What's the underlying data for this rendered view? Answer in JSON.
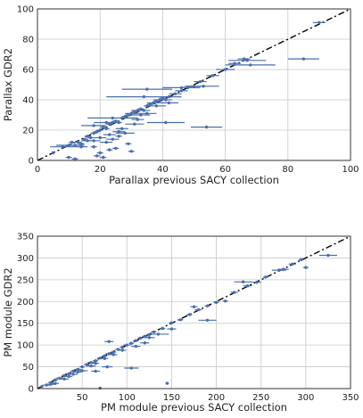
{
  "chart_data": [
    {
      "type": "scatter",
      "title": "",
      "xlabel": "Parallax previous SACY collection",
      "ylabel": "Parallax GDR2",
      "xlim": [
        0,
        100
      ],
      "ylim": [
        0,
        100
      ],
      "xticks": [
        0,
        20,
        40,
        60,
        80,
        100
      ],
      "yticks": [
        0,
        20,
        40,
        60,
        80,
        100
      ],
      "grid": true,
      "reference_line": {
        "style": "dash-dot",
        "color": "#000000",
        "x": [
          0,
          100
        ],
        "y": [
          0,
          100
        ]
      },
      "marker_color": "#4a6fb0",
      "points": [
        {
          "x": 5,
          "y": 5,
          "xerr": 0.5
        },
        {
          "x": 8,
          "y": 9,
          "xerr": 4
        },
        {
          "x": 10,
          "y": 10,
          "xerr": 4
        },
        {
          "x": 11,
          "y": 12,
          "xerr": 1
        },
        {
          "x": 12,
          "y": 10,
          "xerr": 3
        },
        {
          "x": 13,
          "y": 12,
          "xerr": 1
        },
        {
          "x": 14,
          "y": 11,
          "xerr": 1
        },
        {
          "x": 15,
          "y": 14,
          "xerr": 1
        },
        {
          "x": 16,
          "y": 16,
          "xerr": 1
        },
        {
          "x": 17,
          "y": 15,
          "xerr": 1
        },
        {
          "x": 18,
          "y": 18,
          "xerr": 1
        },
        {
          "x": 19,
          "y": 19,
          "xerr": 1
        },
        {
          "x": 20,
          "y": 20,
          "xerr": 1
        },
        {
          "x": 21,
          "y": 22,
          "xerr": 1
        },
        {
          "x": 22,
          "y": 21,
          "xerr": 1
        },
        {
          "x": 23,
          "y": 24,
          "xerr": 1
        },
        {
          "x": 24,
          "y": 25,
          "xerr": 1
        },
        {
          "x": 25,
          "y": 26,
          "xerr": 1
        },
        {
          "x": 26,
          "y": 25,
          "xerr": 1
        },
        {
          "x": 27,
          "y": 28,
          "xerr": 1
        },
        {
          "x": 28,
          "y": 29,
          "xerr": 1
        },
        {
          "x": 29,
          "y": 30,
          "xerr": 1
        },
        {
          "x": 30,
          "y": 31,
          "xerr": 2
        },
        {
          "x": 31,
          "y": 32,
          "xerr": 1
        },
        {
          "x": 32,
          "y": 33,
          "xerr": 2
        },
        {
          "x": 33,
          "y": 34,
          "xerr": 1
        },
        {
          "x": 34,
          "y": 33,
          "xerr": 2
        },
        {
          "x": 35,
          "y": 36,
          "xerr": 1
        },
        {
          "x": 36,
          "y": 37,
          "xerr": 1
        },
        {
          "x": 37,
          "y": 38,
          "xerr": 2
        },
        {
          "x": 38,
          "y": 39,
          "xerr": 1
        },
        {
          "x": 39,
          "y": 40,
          "xerr": 2
        },
        {
          "x": 40,
          "y": 41,
          "xerr": 1
        },
        {
          "x": 41,
          "y": 40,
          "xerr": 2
        },
        {
          "x": 42,
          "y": 42,
          "xerr": 1
        },
        {
          "x": 44,
          "y": 44,
          "xerr": 2
        },
        {
          "x": 46,
          "y": 46,
          "xerr": 2
        },
        {
          "x": 48,
          "y": 48,
          "xerr": 2
        },
        {
          "x": 50,
          "y": 49,
          "xerr": 3
        },
        {
          "x": 52,
          "y": 52,
          "xerr": 2
        },
        {
          "x": 56,
          "y": 56,
          "xerr": 2
        },
        {
          "x": 60,
          "y": 60,
          "xerr": 3
        },
        {
          "x": 63,
          "y": 64,
          "xerr": 2
        },
        {
          "x": 66,
          "y": 67,
          "xerr": 2
        },
        {
          "x": 90,
          "y": 91,
          "xerr": 2
        },
        {
          "x": 14,
          "y": 9,
          "xerr": 2
        },
        {
          "x": 16,
          "y": 13,
          "xerr": 2
        },
        {
          "x": 18,
          "y": 13,
          "xerr": 2
        },
        {
          "x": 20,
          "y": 15,
          "xerr": 2
        },
        {
          "x": 20,
          "y": 5,
          "xerr": 1
        },
        {
          "x": 21,
          "y": 2,
          "xerr": 1
        },
        {
          "x": 22,
          "y": 12,
          "xerr": 2
        },
        {
          "x": 23,
          "y": 17,
          "xerr": 2
        },
        {
          "x": 24,
          "y": 14,
          "xerr": 2
        },
        {
          "x": 25,
          "y": 8,
          "xerr": 1
        },
        {
          "x": 26,
          "y": 19,
          "xerr": 2
        },
        {
          "x": 27,
          "y": 21,
          "xerr": 2
        },
        {
          "x": 28,
          "y": 18,
          "xerr": 3
        },
        {
          "x": 29,
          "y": 11,
          "xerr": 1
        },
        {
          "x": 30,
          "y": 6,
          "xerr": 1
        },
        {
          "x": 31,
          "y": 24,
          "xerr": 3
        },
        {
          "x": 32,
          "y": 27,
          "xerr": 2
        },
        {
          "x": 33,
          "y": 30,
          "xerr": 3
        },
        {
          "x": 35,
          "y": 31,
          "xerr": 3
        },
        {
          "x": 38,
          "y": 36,
          "xerr": 3
        },
        {
          "x": 42,
          "y": 38,
          "xerr": 3
        },
        {
          "x": 10,
          "y": 2,
          "xerr": 1
        },
        {
          "x": 12,
          "y": 1,
          "xerr": 1
        },
        {
          "x": 18,
          "y": 9,
          "xerr": 1
        },
        {
          "x": 19,
          "y": 3,
          "xerr": 1
        },
        {
          "x": 23,
          "y": 7,
          "xerr": 1
        },
        {
          "x": 26,
          "y": 16,
          "xerr": 1
        },
        {
          "x": 24,
          "y": 28,
          "xerr": 8
        },
        {
          "x": 34,
          "y": 42,
          "xerr": 12
        },
        {
          "x": 35,
          "y": 47,
          "xerr": 8
        },
        {
          "x": 41,
          "y": 25,
          "xerr": 6
        },
        {
          "x": 46,
          "y": 48,
          "xerr": 6
        },
        {
          "x": 53,
          "y": 49,
          "xerr": 5
        },
        {
          "x": 54,
          "y": 22,
          "xerr": 5
        },
        {
          "x": 68,
          "y": 63,
          "xerr": 8
        },
        {
          "x": 67,
          "y": 66,
          "xerr": 6
        },
        {
          "x": 85,
          "y": 67,
          "xerr": 5
        },
        {
          "x": 18,
          "y": 23,
          "xerr": 4
        },
        {
          "x": 22,
          "y": 25,
          "xerr": 4
        }
      ]
    },
    {
      "type": "scatter",
      "title": "",
      "xlabel": "PM module previous SACY collection",
      "ylabel": "PM module GDR2",
      "xlim": [
        0,
        350
      ],
      "ylim": [
        0,
        350
      ],
      "xticks": [
        50,
        100,
        150,
        200,
        250,
        300,
        350
      ],
      "yticks": [
        0,
        50,
        100,
        150,
        200,
        250,
        300,
        350
      ],
      "grid": true,
      "reference_line": {
        "style": "dash-dot",
        "color": "#000000",
        "x": [
          0,
          350
        ],
        "y": [
          0,
          350
        ]
      },
      "marker_color": "#4a6fb0",
      "points": [
        {
          "x": 5,
          "y": 5,
          "xerr": 1
        },
        {
          "x": 10,
          "y": 8,
          "xerr": 4
        },
        {
          "x": 15,
          "y": 14,
          "xerr": 3
        },
        {
          "x": 20,
          "y": 20,
          "xerr": 3
        },
        {
          "x": 25,
          "y": 24,
          "xerr": 4
        },
        {
          "x": 30,
          "y": 30,
          "xerr": 3
        },
        {
          "x": 35,
          "y": 34,
          "xerr": 4
        },
        {
          "x": 40,
          "y": 40,
          "xerr": 3
        },
        {
          "x": 45,
          "y": 44,
          "xerr": 4
        },
        {
          "x": 50,
          "y": 50,
          "xerr": 3
        },
        {
          "x": 55,
          "y": 55,
          "xerr": 3
        },
        {
          "x": 60,
          "y": 60,
          "xerr": 4
        },
        {
          "x": 65,
          "y": 64,
          "xerr": 3
        },
        {
          "x": 70,
          "y": 70,
          "xerr": 3
        },
        {
          "x": 75,
          "y": 75,
          "xerr": 3
        },
        {
          "x": 80,
          "y": 80,
          "xerr": 4
        },
        {
          "x": 85,
          "y": 84,
          "xerr": 3
        },
        {
          "x": 90,
          "y": 90,
          "xerr": 3
        },
        {
          "x": 95,
          "y": 95,
          "xerr": 3
        },
        {
          "x": 100,
          "y": 100,
          "xerr": 4
        },
        {
          "x": 105,
          "y": 104,
          "xerr": 3
        },
        {
          "x": 110,
          "y": 110,
          "xerr": 3
        },
        {
          "x": 115,
          "y": 116,
          "xerr": 3
        },
        {
          "x": 120,
          "y": 120,
          "xerr": 3
        },
        {
          "x": 125,
          "y": 124,
          "xerr": 3
        },
        {
          "x": 130,
          "y": 130,
          "xerr": 3
        },
        {
          "x": 140,
          "y": 138,
          "xerr": 3
        },
        {
          "x": 150,
          "y": 151,
          "xerr": 3
        },
        {
          "x": 160,
          "y": 158,
          "xerr": 3
        },
        {
          "x": 170,
          "y": 170,
          "xerr": 3
        },
        {
          "x": 180,
          "y": 181,
          "xerr": 4
        },
        {
          "x": 190,
          "y": 190,
          "xerr": 3
        },
        {
          "x": 200,
          "y": 198,
          "xerr": 3
        },
        {
          "x": 220,
          "y": 221,
          "xerr": 4
        },
        {
          "x": 235,
          "y": 236,
          "xerr": 5
        },
        {
          "x": 245,
          "y": 244,
          "xerr": 5
        },
        {
          "x": 255,
          "y": 256,
          "xerr": 3
        },
        {
          "x": 275,
          "y": 274,
          "xerr": 6
        },
        {
          "x": 285,
          "y": 286,
          "xerr": 4
        },
        {
          "x": 295,
          "y": 296,
          "xerr": 3
        },
        {
          "x": 30,
          "y": 22,
          "xerr": 5
        },
        {
          "x": 40,
          "y": 33,
          "xerr": 5
        },
        {
          "x": 50,
          "y": 41,
          "xerr": 6
        },
        {
          "x": 60,
          "y": 52,
          "xerr": 5
        },
        {
          "x": 20,
          "y": 12,
          "xerr": 4
        },
        {
          "x": 15,
          "y": 10,
          "xerr": 6
        },
        {
          "x": 35,
          "y": 28,
          "xerr": 4
        },
        {
          "x": 45,
          "y": 38,
          "xerr": 4
        },
        {
          "x": 65,
          "y": 58,
          "xerr": 4
        },
        {
          "x": 75,
          "y": 69,
          "xerr": 4
        },
        {
          "x": 85,
          "y": 78,
          "xerr": 4
        },
        {
          "x": 95,
          "y": 88,
          "xerr": 4
        },
        {
          "x": 70,
          "y": 1,
          "xerr": 1
        },
        {
          "x": 145,
          "y": 12,
          "xerr": 2
        },
        {
          "x": 105,
          "y": 47,
          "xerr": 8
        },
        {
          "x": 78,
          "y": 50,
          "xerr": 6
        },
        {
          "x": 65,
          "y": 40,
          "xerr": 5
        },
        {
          "x": 80,
          "y": 108,
          "xerr": 5
        },
        {
          "x": 120,
          "y": 105,
          "xerr": 5
        },
        {
          "x": 135,
          "y": 125,
          "xerr": 12
        },
        {
          "x": 190,
          "y": 157,
          "xerr": 10
        },
        {
          "x": 230,
          "y": 245,
          "xerr": 10
        },
        {
          "x": 270,
          "y": 272,
          "xerr": 8
        },
        {
          "x": 300,
          "y": 278,
          "xerr": 3
        },
        {
          "x": 325,
          "y": 306,
          "xerr": 10
        },
        {
          "x": 150,
          "y": 137,
          "xerr": 5
        },
        {
          "x": 175,
          "y": 188,
          "xerr": 4
        },
        {
          "x": 210,
          "y": 201,
          "xerr": 3
        },
        {
          "x": 110,
          "y": 97,
          "xerr": 5
        },
        {
          "x": 125,
          "y": 117,
          "xerr": 6
        }
      ]
    }
  ]
}
